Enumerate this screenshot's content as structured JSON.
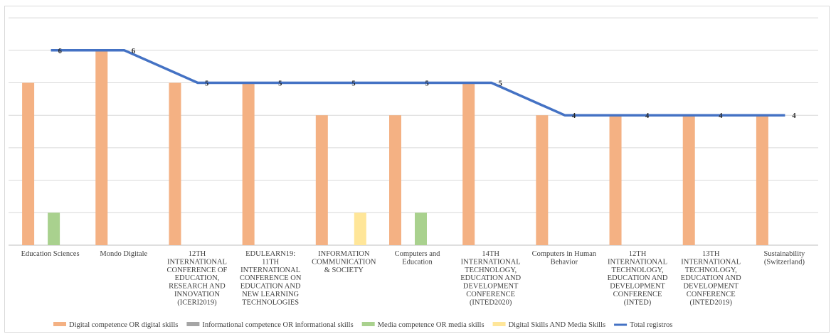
{
  "chart_data": {
    "type": "bar",
    "title": "",
    "xlabel": "",
    "ylabel": "",
    "ylim": [
      0,
      7
    ],
    "grid": true,
    "legend_position": "bottom",
    "categories": [
      [
        "Education Sciences"
      ],
      [
        "Mondo Digitale"
      ],
      [
        "12TH",
        "INTERNATIONAL",
        "CONFERENCE OF",
        "EDUCATION,",
        "RESEARCH AND",
        "INNOVATION",
        "(ICERI2019)"
      ],
      [
        "EDULEARN19:",
        "11TH",
        "INTERNATIONAL",
        "CONFERENCE ON",
        "EDUCATION AND",
        "NEW LEARNING",
        "TECHNOLOGIES"
      ],
      [
        "INFORMATION",
        "COMMUNICATION",
        "& SOCIETY"
      ],
      [
        "Computers and",
        "Education"
      ],
      [
        "14TH",
        "INTERNATIONAL",
        "TECHNOLOGY,",
        "EDUCATION AND",
        "DEVELOPMENT",
        "CONFERENCE",
        "(INTED2020)"
      ],
      [
        "Computers in Human",
        "Behavior"
      ],
      [
        "12TH",
        "INTERNATIONAL",
        "TECHNOLOGY,",
        "EDUCATION AND",
        "DEVELOPMENT",
        "CONFERENCE",
        "(INTED)"
      ],
      [
        "13TH",
        "INTERNATIONAL",
        "TECHNOLOGY,",
        "EDUCATION AND",
        "DEVELOPMENT",
        "CONFERENCE",
        "(INTED2019)"
      ],
      [
        "Sustainability",
        "(Switzerland)"
      ]
    ],
    "series": [
      {
        "name": "Digital competence OR digital skills",
        "color": "#f4b183",
        "kind": "bar",
        "values": [
          5,
          6,
          5,
          5,
          4,
          4,
          5,
          4,
          4,
          4,
          4
        ]
      },
      {
        "name": "Informational competence OR  informational skills",
        "color": "#a5a5a5",
        "kind": "bar",
        "values": [
          0,
          0,
          0,
          0,
          0,
          0,
          0,
          0,
          0,
          0,
          0
        ]
      },
      {
        "name": "Media competence OR media skills",
        "color": "#a9d18e",
        "kind": "bar",
        "values": [
          1,
          0,
          0,
          0,
          0,
          1,
          0,
          0,
          0,
          0,
          0
        ]
      },
      {
        "name": "Digital Skills AND Media Skills",
        "color": "#ffe699",
        "kind": "bar",
        "values": [
          0,
          0,
          0,
          0,
          1,
          0,
          0,
          0,
          0,
          0,
          0
        ]
      },
      {
        "name": "Total registros",
        "color": "#4472c4",
        "kind": "line",
        "values": [
          6,
          6,
          5,
          5,
          5,
          5,
          5,
          4,
          4,
          4,
          4
        ]
      }
    ],
    "data_labels": [
      "6",
      "6",
      "5",
      "5",
      "5",
      "5",
      "5",
      "4",
      "4",
      "4",
      "4"
    ]
  }
}
